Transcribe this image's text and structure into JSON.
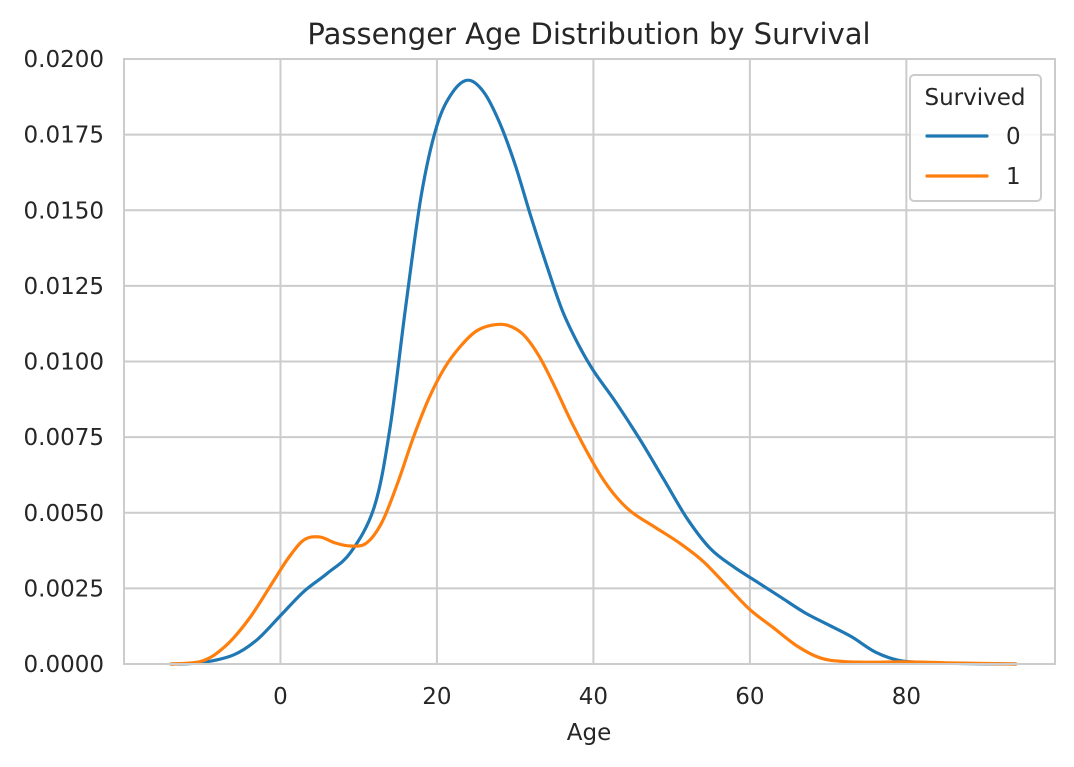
{
  "chart_data": {
    "type": "line",
    "title": "Passenger Age Distribution by Survival",
    "xlabel": "Age",
    "ylabel": "",
    "xlim": [
      -20,
      99
    ],
    "ylim": [
      0,
      0.02
    ],
    "x_ticks": [
      0,
      20,
      40,
      60,
      80
    ],
    "x_tick_labels": [
      "0",
      "20",
      "40",
      "60",
      "80"
    ],
    "y_ticks": [
      0,
      0.0025,
      0.005,
      0.0075,
      0.01,
      0.0125,
      0.015,
      0.0175,
      0.02
    ],
    "y_tick_labels": [
      "0.0000",
      "0.0025",
      "0.0050",
      "0.0075",
      "0.0100",
      "0.0125",
      "0.0150",
      "0.0175",
      "0.0200"
    ],
    "grid": true,
    "legend": {
      "title": "Survived",
      "placement": "top-right"
    },
    "series": [
      {
        "name": "0",
        "color": "#1f77b4",
        "points": [
          [
            -14,
            0.0
          ],
          [
            -10,
            5e-05
          ],
          [
            -6,
            0.0003
          ],
          [
            -3,
            0.0008
          ],
          [
            0,
            0.0016
          ],
          [
            3,
            0.0024
          ],
          [
            6,
            0.003
          ],
          [
            9,
            0.0037
          ],
          [
            12,
            0.0052
          ],
          [
            14,
            0.0078
          ],
          [
            16,
            0.0118
          ],
          [
            18,
            0.0155
          ],
          [
            20,
            0.0178
          ],
          [
            22,
            0.0189
          ],
          [
            24,
            0.0193
          ],
          [
            26,
            0.0189
          ],
          [
            28,
            0.0179
          ],
          [
            30,
            0.0165
          ],
          [
            32,
            0.0148
          ],
          [
            34,
            0.0132
          ],
          [
            36,
            0.0117
          ],
          [
            38,
            0.0106
          ],
          [
            40,
            0.0097
          ],
          [
            43,
            0.0086
          ],
          [
            46,
            0.0074
          ],
          [
            49,
            0.0061
          ],
          [
            52,
            0.0048
          ],
          [
            55,
            0.0038
          ],
          [
            58,
            0.0032
          ],
          [
            61,
            0.0027
          ],
          [
            64,
            0.0022
          ],
          [
            67,
            0.0017
          ],
          [
            70,
            0.0013
          ],
          [
            73,
            0.0009
          ],
          [
            76,
            0.0004
          ],
          [
            79,
            0.00012
          ],
          [
            82,
            5e-05
          ],
          [
            86,
            2e-05
          ],
          [
            94,
            0.0
          ]
        ]
      },
      {
        "name": "1",
        "color": "#ff7f0e",
        "points": [
          [
            -14,
            0.0
          ],
          [
            -10,
            0.0001
          ],
          [
            -7,
            0.0006
          ],
          [
            -4,
            0.0015
          ],
          [
            -1,
            0.0027
          ],
          [
            1,
            0.0035
          ],
          [
            3,
            0.0041
          ],
          [
            5,
            0.0042
          ],
          [
            7,
            0.004
          ],
          [
            9,
            0.0039
          ],
          [
            11,
            0.004
          ],
          [
            13,
            0.0047
          ],
          [
            15,
            0.006
          ],
          [
            17,
            0.0075
          ],
          [
            19,
            0.0088
          ],
          [
            21,
            0.0098
          ],
          [
            23,
            0.0105
          ],
          [
            25,
            0.011
          ],
          [
            27,
            0.0112
          ],
          [
            29,
            0.0112
          ],
          [
            31,
            0.0109
          ],
          [
            33,
            0.0102
          ],
          [
            35,
            0.0092
          ],
          [
            37,
            0.0081
          ],
          [
            39,
            0.0071
          ],
          [
            41,
            0.0062
          ],
          [
            43,
            0.0055
          ],
          [
            45,
            0.005
          ],
          [
            48,
            0.0045
          ],
          [
            51,
            0.004
          ],
          [
            54,
            0.0034
          ],
          [
            57,
            0.0026
          ],
          [
            60,
            0.0018
          ],
          [
            63,
            0.0012
          ],
          [
            66,
            0.0006
          ],
          [
            69,
            0.0002
          ],
          [
            72,
            8e-05
          ],
          [
            76,
            6e-05
          ],
          [
            80,
            7e-05
          ],
          [
            85,
            4e-05
          ],
          [
            94,
            0.0
          ]
        ]
      }
    ]
  }
}
